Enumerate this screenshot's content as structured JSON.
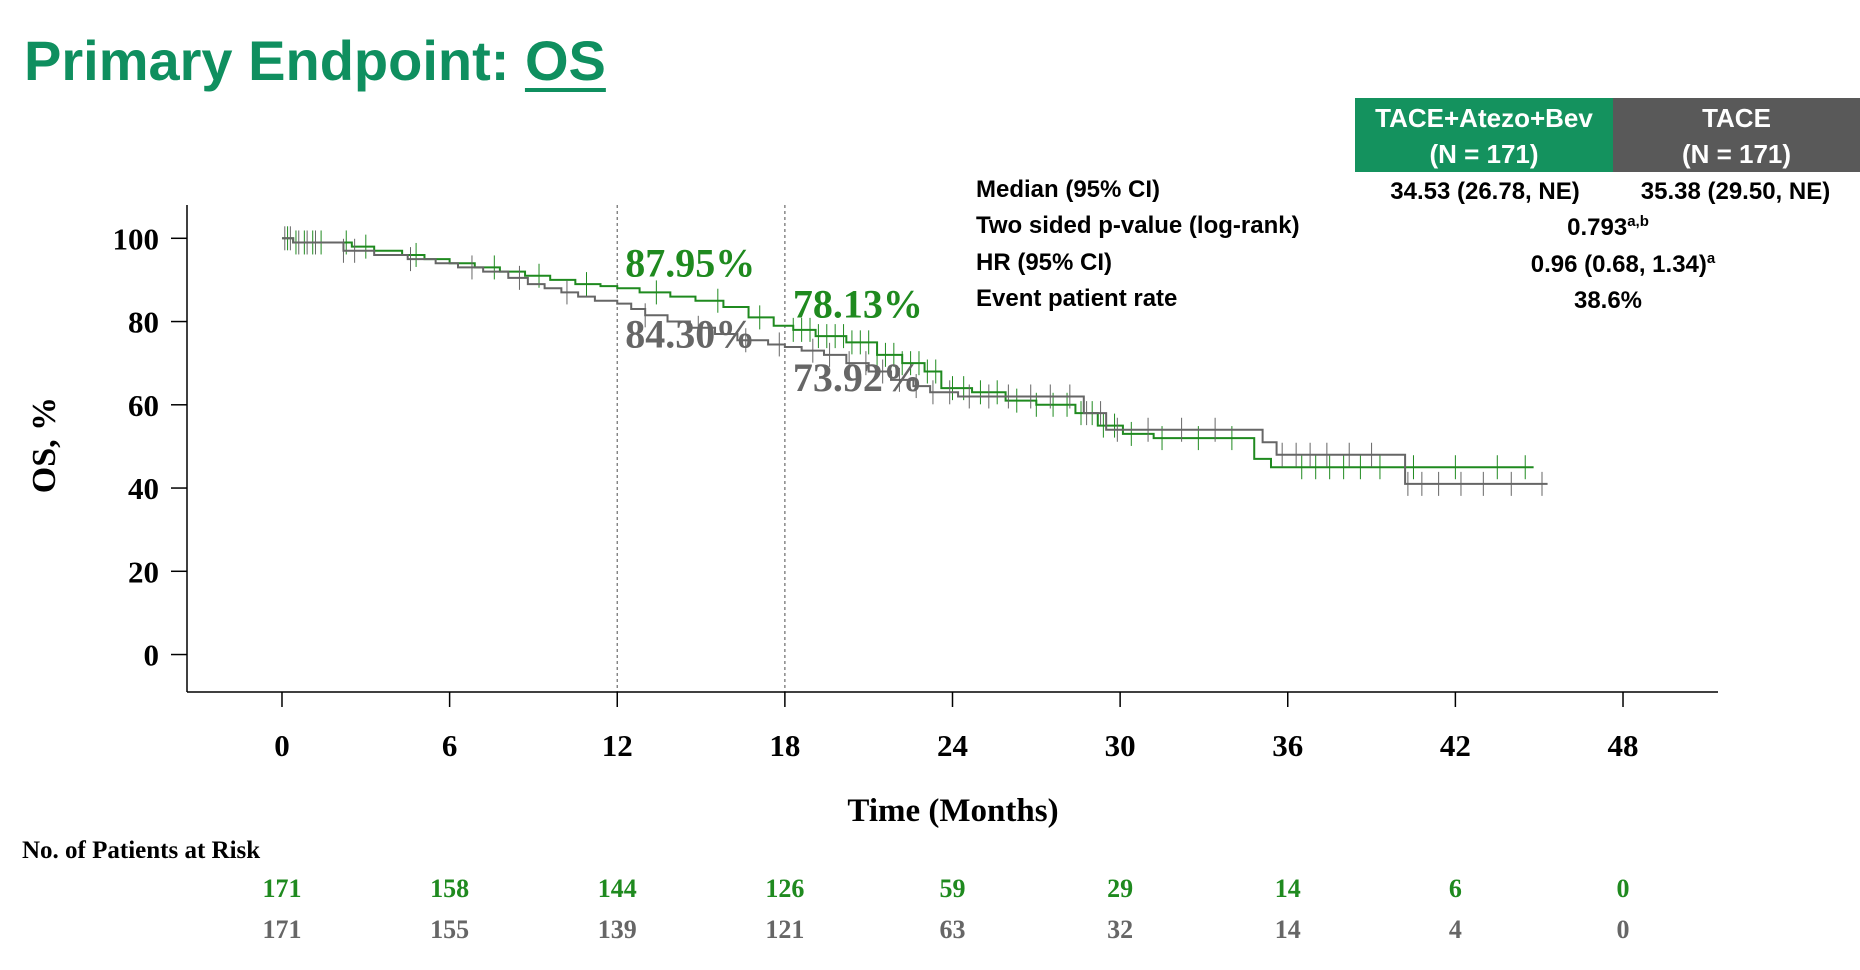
{
  "title": {
    "prefix": "Primary Endpoint: ",
    "emph": "OS"
  },
  "table": {
    "arm1_header": [
      "TACE+Atezo+Bev",
      "(N = 171)"
    ],
    "arm2_header": [
      "TACE",
      "(N = 171)"
    ],
    "median_label": "Median (95% CI)",
    "median_arm1": "34.53 (26.78, NE)",
    "median_arm2": "35.38 (29.50, NE)",
    "pvalue_label": "Two sided p-value (log-rank)",
    "pvalue": "0.793",
    "pvalue_sup": "a,b",
    "hr_label": "HR (95% CI)",
    "hr": "0.96 (0.68, 1.34)",
    "hr_sup": "a",
    "event_label": "Event patient rate",
    "event_rate": "38.6%"
  },
  "colors": {
    "arm1": "#1f8a1f",
    "arm2": "#666666",
    "title": "#0f8f5f"
  },
  "chart_data": {
    "type": "line",
    "xlabel": "Time (Months)",
    "ylabel": "OS, %",
    "xlim": [
      -3.4,
      51.4
    ],
    "ylim": [
      -9,
      108
    ],
    "xticks": [
      0,
      6,
      12,
      18,
      24,
      30,
      36,
      42,
      48
    ],
    "yticks": [
      0,
      20,
      40,
      60,
      80,
      100
    ],
    "reference_lines_x": [
      12,
      18
    ],
    "annotations": [
      {
        "text": "87.95%",
        "series": "TACE+Atezo+Bev",
        "x": 12
      },
      {
        "text": "78.13%",
        "series": "TACE+Atezo+Bev",
        "x": 18
      },
      {
        "text": "84.30%",
        "series": "TACE",
        "x": 12
      },
      {
        "text": "73.92%",
        "series": "TACE",
        "x": 18
      }
    ],
    "series": [
      {
        "name": "TACE+Atezo+Bev",
        "color": "#1f8a1f",
        "x": [
          0,
          0.4,
          2.5,
          3.3,
          4.3,
          5.1,
          6.0,
          6.9,
          7.8,
          8.7,
          9.6,
          10.5,
          11.4,
          12.0,
          12.8,
          13.9,
          14.8,
          15.8,
          16.7,
          17.6,
          18.3,
          19.1,
          20.2,
          21.3,
          22.2,
          23.0,
          23.6,
          24.7,
          25.9,
          27.0,
          28.4,
          29.2,
          30.1,
          31.2,
          34.8,
          35.4,
          44.8
        ],
        "y": [
          100,
          99,
          98,
          97,
          96,
          95,
          94,
          93,
          92,
          91,
          90,
          89,
          88.5,
          88,
          87,
          86,
          85,
          83.5,
          81,
          79,
          78,
          76.5,
          75,
          72,
          70,
          68,
          64,
          63,
          61,
          60,
          58,
          55,
          53,
          52,
          47,
          45,
          45
        ]
      },
      {
        "name": "TACE",
        "color": "#666666",
        "x": [
          0,
          0.4,
          2.2,
          3.3,
          4.5,
          5.5,
          6.3,
          7.2,
          8.1,
          8.8,
          9.4,
          10.0,
          10.6,
          11.2,
          12.0,
          12.5,
          13.0,
          13.8,
          14.6,
          15.5,
          16.3,
          17.4,
          18.0,
          18.6,
          19.4,
          20.2,
          21.0,
          21.8,
          22.6,
          23.2,
          24.2,
          25.5,
          28.7,
          29.5,
          35.1,
          35.6,
          40.2,
          45.3
        ],
        "y": [
          100,
          99,
          97,
          96,
          95,
          94,
          93,
          92,
          90.5,
          89,
          88,
          87,
          86,
          85,
          84.3,
          83,
          81.5,
          80,
          78.5,
          77,
          75.5,
          74.5,
          73.9,
          73,
          72,
          70,
          68,
          66,
          64.5,
          63,
          62,
          62,
          58,
          54,
          51,
          48,
          41,
          41
        ]
      }
    ]
  },
  "risk_table": {
    "title": "No. of Patients at Risk",
    "times": [
      0,
      6,
      12,
      18,
      24,
      30,
      36,
      42,
      48
    ],
    "arm1": [
      "171",
      "158",
      "144",
      "126",
      "59",
      "29",
      "14",
      "6",
      "0"
    ],
    "arm2": [
      "171",
      "155",
      "139",
      "121",
      "63",
      "32",
      "14",
      "4",
      "0"
    ]
  }
}
